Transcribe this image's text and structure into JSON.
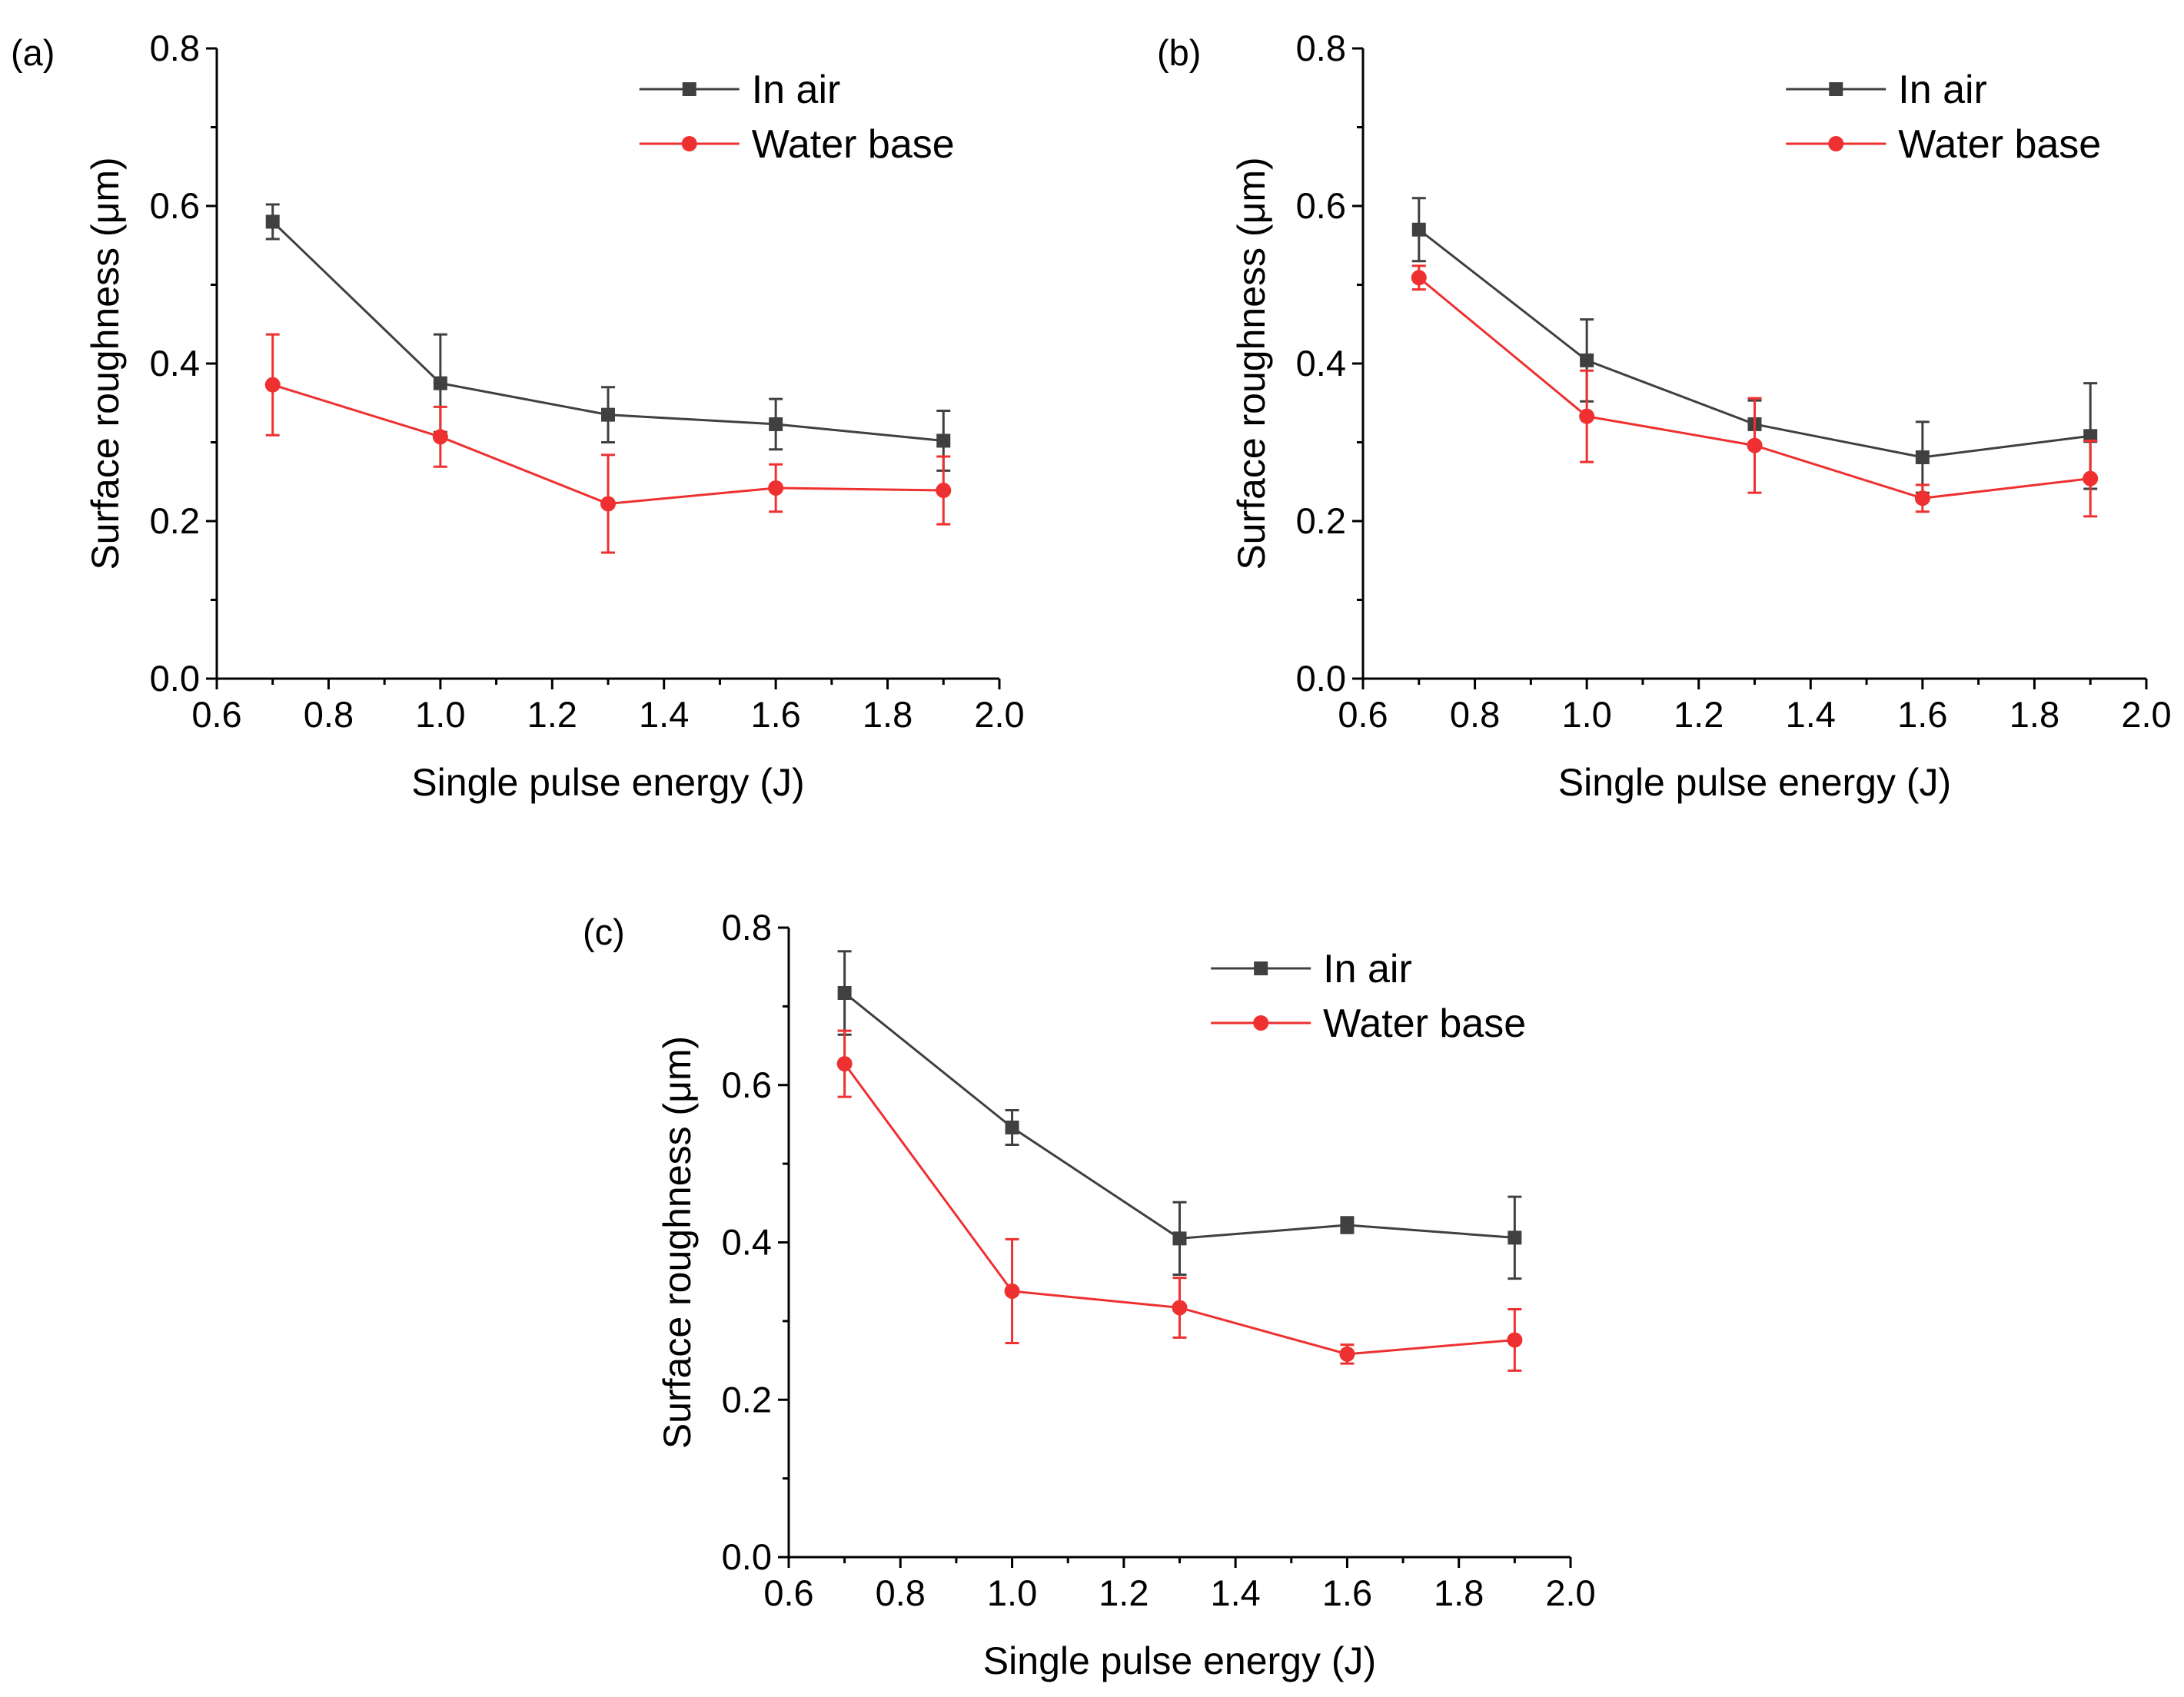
{
  "colors": {
    "in_air": "#404040",
    "water_base": "#ee3030",
    "axis": "#000000"
  },
  "chart_data": [
    {
      "type": "line",
      "panel_label": "(a)",
      "xlabel": "Single pulse energy (J)",
      "ylabel": "Surface roughness (μm)",
      "xlim": [
        0.6,
        2.0
      ],
      "ylim": [
        0.0,
        0.8
      ],
      "xticks": [
        "0.6",
        "0.8",
        "1.0",
        "1.2",
        "1.4",
        "1.6",
        "1.8",
        "2.0"
      ],
      "yticks": [
        "0.0",
        "0.2",
        "0.4",
        "0.6",
        "0.8"
      ],
      "legend": "top-right",
      "x": [
        0.7,
        1.0,
        1.3,
        1.6,
        1.9
      ],
      "series": [
        {
          "name": "In air",
          "key": "in_air",
          "marker": "square",
          "values": [
            0.58,
            0.375,
            0.335,
            0.323,
            0.302
          ],
          "errors": [
            0.022,
            0.062,
            0.035,
            0.032,
            0.038
          ]
        },
        {
          "name": "Water base",
          "key": "water_base",
          "marker": "circle",
          "values": [
            0.373,
            0.307,
            0.222,
            0.242,
            0.239
          ],
          "errors": [
            0.064,
            0.038,
            0.062,
            0.03,
            0.043
          ]
        }
      ]
    },
    {
      "type": "line",
      "panel_label": "(b)",
      "xlabel": "Single pulse energy (J)",
      "ylabel": "Surface roughness (μm)",
      "xlim": [
        0.6,
        2.0
      ],
      "ylim": [
        0.0,
        0.8
      ],
      "xticks": [
        "0.6",
        "0.8",
        "1.0",
        "1.2",
        "1.4",
        "1.6",
        "1.8",
        "2.0"
      ],
      "yticks": [
        "0.0",
        "0.2",
        "0.4",
        "0.6",
        "0.8"
      ],
      "legend": "top-right",
      "x": [
        0.7,
        1.0,
        1.3,
        1.6,
        1.9
      ],
      "series": [
        {
          "name": "In air",
          "key": "in_air",
          "marker": "square",
          "values": [
            0.57,
            0.404,
            0.323,
            0.281,
            0.308
          ],
          "errors": [
            0.04,
            0.052,
            0.03,
            0.045,
            0.067
          ]
        },
        {
          "name": "Water base",
          "key": "water_base",
          "marker": "circle",
          "values": [
            0.509,
            0.333,
            0.296,
            0.229,
            0.254
          ],
          "errors": [
            0.015,
            0.058,
            0.06,
            0.017,
            0.048
          ]
        }
      ]
    },
    {
      "type": "line",
      "panel_label": "(c)",
      "xlabel": "Single pulse energy (J)",
      "ylabel": "Surface roughness (μm)",
      "xlim": [
        0.6,
        2.0
      ],
      "ylim": [
        0.0,
        0.8
      ],
      "xticks": [
        "0.6",
        "0.8",
        "1.0",
        "1.2",
        "1.4",
        "1.6",
        "1.8",
        "2.0"
      ],
      "yticks": [
        "0.0",
        "0.2",
        "0.4",
        "0.6",
        "0.8"
      ],
      "legend": "top-right",
      "x": [
        0.7,
        1.0,
        1.3,
        1.6,
        1.9
      ],
      "series": [
        {
          "name": "In air",
          "key": "in_air",
          "marker": "square",
          "values": [
            0.717,
            0.546,
            0.405,
            0.422,
            0.406
          ],
          "errors": [
            0.053,
            0.022,
            0.046,
            0.01,
            0.052
          ]
        },
        {
          "name": "Water base",
          "key": "water_base",
          "marker": "circle",
          "values": [
            0.627,
            0.338,
            0.317,
            0.258,
            0.276
          ],
          "errors": [
            0.042,
            0.066,
            0.038,
            0.012,
            0.039
          ]
        }
      ]
    }
  ]
}
